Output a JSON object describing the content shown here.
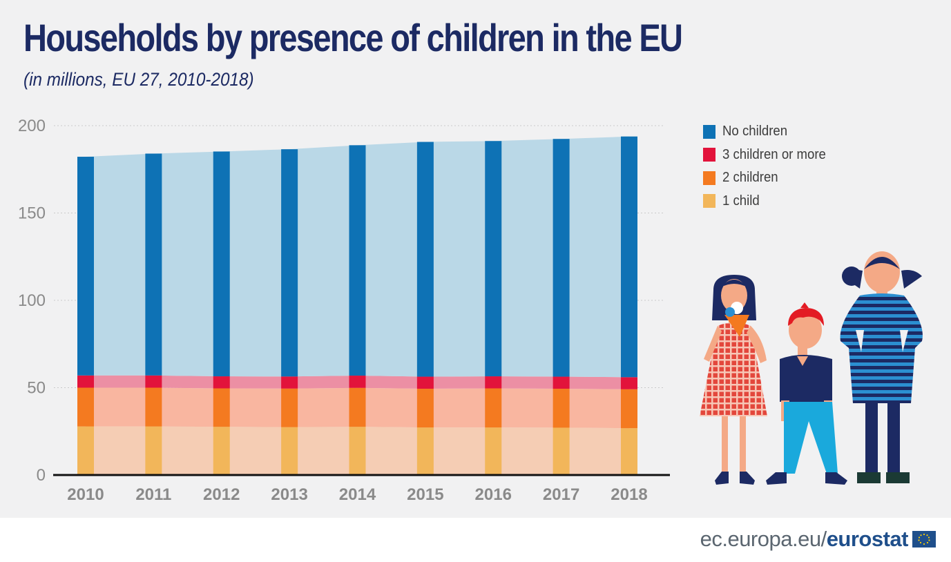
{
  "title": "Households by presence of children in the EU",
  "subtitle": "(in millions, EU 27, 2010-2018)",
  "legend": [
    {
      "label": "No children",
      "color": "#0e72b5"
    },
    {
      "label": "3 children or more",
      "color": "#e2133b"
    },
    {
      "label": "2 children",
      "color": "#f47a20"
    },
    {
      "label": "1 child",
      "color": "#f2b65a"
    }
  ],
  "footer": {
    "url": "ec.europa.eu/",
    "brand": "eurostat"
  },
  "chart_data": {
    "type": "bar",
    "stacked": true,
    "categories": [
      "2010",
      "2011",
      "2012",
      "2013",
      "2014",
      "2015",
      "2016",
      "2017",
      "2018"
    ],
    "series": [
      {
        "name": "1 child",
        "color": "#f2b65a",
        "area_color": "#f5cdb4",
        "values": [
          27.8,
          27.8,
          27.6,
          27.4,
          27.6,
          27.2,
          27.2,
          27.1,
          26.8
        ]
      },
      {
        "name": "2 children",
        "color": "#f47a20",
        "area_color": "#f9b6a0",
        "values": [
          22.2,
          22.2,
          22.0,
          22.1,
          22.3,
          22.2,
          22.4,
          22.3,
          22.3
        ]
      },
      {
        "name": "3 children or more",
        "color": "#e2133b",
        "area_color": "#ec8fa4",
        "values": [
          7.0,
          7.0,
          6.9,
          6.9,
          7.0,
          6.9,
          6.9,
          6.9,
          6.9
        ]
      },
      {
        "name": "No children",
        "color": "#0e72b5",
        "area_color": "#bad8e7",
        "values": [
          125.2,
          127.0,
          128.7,
          130.1,
          131.9,
          134.4,
          134.7,
          136.1,
          137.8
        ]
      }
    ],
    "ylim": [
      0,
      200
    ],
    "yticks": [
      0,
      50,
      100,
      150,
      200
    ],
    "grid": true,
    "legend_position": "right"
  }
}
